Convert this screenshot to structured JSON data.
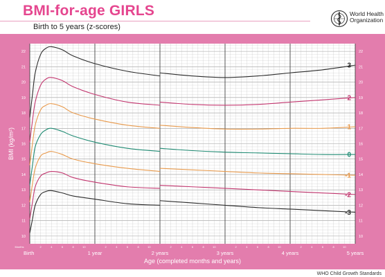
{
  "header": {
    "title": "BMI-for-age GIRLS",
    "subtitle": "Birth to 5 years (z-scores)",
    "org_line1": "World Health",
    "org_line2": "Organization",
    "footer": "WHO Child Growth Standards"
  },
  "colors": {
    "frame": "#e37dad",
    "title": "#e5468f",
    "grid": "#bdbdbd",
    "z3": "#2a2a2a",
    "z2": "#c2356e",
    "z1": "#e89a4c",
    "z0": "#1e8a72"
  },
  "chart_data": {
    "type": "line",
    "title": "BMI-for-age GIRLS",
    "subtitle": "Birth to 5 years (z-scores)",
    "xlabel": "Age (completed months and years)",
    "ylabel": "BMI (kg/m²)",
    "xlim": [
      0,
      60
    ],
    "ylim": [
      9.5,
      22.5
    ],
    "y_ticks": [
      10,
      11,
      12,
      13,
      14,
      15,
      16,
      17,
      18,
      19,
      20,
      21,
      22
    ],
    "x_ticks": [
      {
        "month": 0,
        "label": "Birth"
      },
      {
        "month": 12,
        "label": "1 year"
      },
      {
        "month": 24,
        "label": "2 years"
      },
      {
        "month": 36,
        "label": "3 years"
      },
      {
        "month": 48,
        "label": "4 years"
      },
      {
        "month": 60,
        "label": "5 years"
      }
    ],
    "minor_x_labels": [
      "2",
      "4",
      "6",
      "8",
      "10"
    ],
    "months_label": "Months",
    "grid": true,
    "note": "",
    "segment_break_month": 24,
    "series": [
      {
        "name": "3",
        "color": "#2a2a2a",
        "x": [
          0,
          0.5,
          1,
          2,
          3,
          4,
          6,
          8,
          12,
          18,
          24,
          24,
          30,
          36,
          42,
          48,
          54,
          60
        ],
        "y": [
          17.7,
          19.2,
          20.6,
          21.8,
          22.2,
          22.3,
          22.1,
          21.7,
          21.2,
          20.7,
          20.4,
          20.6,
          20.4,
          20.3,
          20.4,
          20.6,
          20.8,
          21.1
        ]
      },
      {
        "name": "2",
        "color": "#c2356e",
        "x": [
          0,
          0.5,
          1,
          2,
          3,
          4,
          6,
          8,
          12,
          18,
          24,
          24,
          30,
          36,
          42,
          48,
          54,
          60
        ],
        "y": [
          16.1,
          17.5,
          18.7,
          19.8,
          20.2,
          20.3,
          20.1,
          19.7,
          19.2,
          18.7,
          18.5,
          18.7,
          18.55,
          18.5,
          18.55,
          18.7,
          18.85,
          19.0
        ]
      },
      {
        "name": "1",
        "color": "#e89a4c",
        "x": [
          0,
          0.5,
          1,
          2,
          3,
          4,
          6,
          8,
          12,
          18,
          24,
          24,
          30,
          36,
          42,
          48,
          54,
          60
        ],
        "y": [
          14.6,
          16.0,
          17.2,
          18.2,
          18.5,
          18.6,
          18.4,
          18.0,
          17.6,
          17.2,
          17.0,
          17.2,
          17.05,
          16.95,
          16.95,
          17.0,
          17.0,
          17.1
        ]
      },
      {
        "name": "0",
        "color": "#1e8a72",
        "x": [
          0,
          0.5,
          1,
          2,
          3,
          4,
          6,
          8,
          12,
          18,
          24,
          24,
          30,
          36,
          42,
          48,
          54,
          60
        ],
        "y": [
          13.3,
          14.6,
          15.8,
          16.6,
          16.9,
          17.0,
          16.8,
          16.5,
          16.1,
          15.7,
          15.5,
          15.7,
          15.55,
          15.45,
          15.4,
          15.35,
          15.3,
          15.3
        ]
      },
      {
        "name": "-1",
        "color": "#e89a4c",
        "x": [
          0,
          0.5,
          1,
          2,
          3,
          4,
          6,
          8,
          12,
          18,
          24,
          24,
          30,
          36,
          42,
          48,
          54,
          60
        ],
        "y": [
          12.2,
          13.4,
          14.4,
          15.2,
          15.4,
          15.5,
          15.3,
          15.0,
          14.7,
          14.4,
          14.2,
          14.4,
          14.3,
          14.2,
          14.1,
          14.05,
          14.0,
          13.95
        ]
      },
      {
        "name": "-2",
        "color": "#c2356e",
        "x": [
          0,
          0.5,
          1,
          2,
          3,
          4,
          6,
          8,
          12,
          18,
          24,
          24,
          30,
          36,
          42,
          48,
          54,
          60
        ],
        "y": [
          11.1,
          12.2,
          13.2,
          13.9,
          14.1,
          14.2,
          14.1,
          13.8,
          13.5,
          13.2,
          13.1,
          13.3,
          13.2,
          13.1,
          13.0,
          12.9,
          12.8,
          12.7
        ]
      },
      {
        "name": "-3",
        "color": "#2a2a2a",
        "x": [
          0,
          0.5,
          1,
          2,
          3,
          4,
          6,
          8,
          12,
          18,
          24,
          24,
          30,
          36,
          42,
          48,
          54,
          60
        ],
        "y": [
          10.2,
          11.1,
          12.0,
          12.7,
          12.9,
          12.95,
          12.8,
          12.6,
          12.4,
          12.1,
          12.0,
          12.3,
          12.15,
          12.0,
          11.85,
          11.75,
          11.65,
          11.55
        ]
      }
    ]
  }
}
